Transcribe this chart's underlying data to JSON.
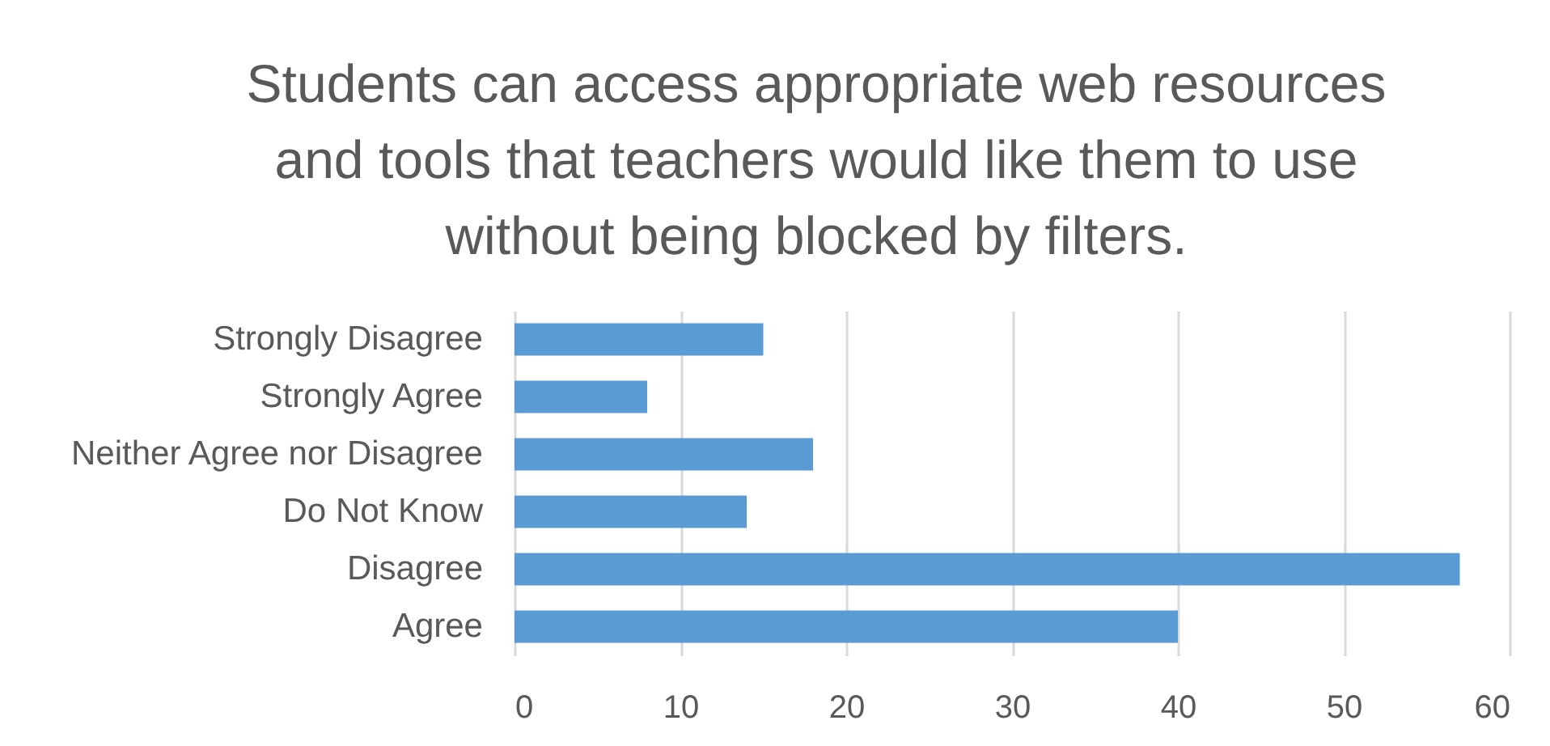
{
  "chart_data": {
    "type": "bar",
    "orientation": "horizontal",
    "title": "Students can access appropriate web resources and tools that teachers would like them to use without being blocked by filters.",
    "categories": [
      "Strongly Disagree",
      "Strongly Agree",
      "Neither Agree nor Disagree",
      "Do Not Know",
      "Disagree",
      "Agree"
    ],
    "values": [
      15,
      8,
      18,
      14,
      57,
      40
    ],
    "color": "#5b9bd5",
    "xlim": [
      0,
      60
    ],
    "xticks": [
      0,
      10,
      20,
      30,
      40,
      50,
      60
    ],
    "grid": "x"
  }
}
